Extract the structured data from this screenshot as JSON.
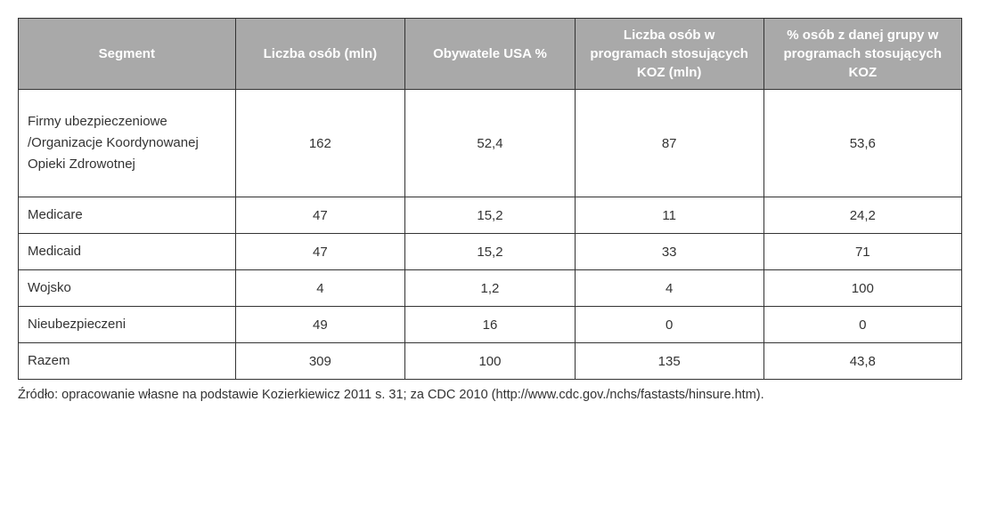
{
  "table": {
    "type": "table",
    "header_bg": "#a9a9a9",
    "header_color": "#ffffff",
    "border_color": "#333333",
    "text_color": "#333333",
    "font_family": "Arial, Helvetica, sans-serif",
    "header_fontsize": 15,
    "body_fontsize": 15,
    "columns": [
      "Segment",
      "Liczba osób (mln)",
      "Obywatele USA %",
      "Liczba osób w programach stosujących KOZ (mln)",
      "% osób z danej grupy w programach stosujących KOZ"
    ],
    "column_widths_pct": [
      23,
      18,
      18,
      20,
      21
    ],
    "column_align": [
      "left",
      "center",
      "center",
      "center",
      "center"
    ],
    "rows": [
      {
        "segment": "Firmy ubezpieczeniowe /Organizacje Koordynowanej Opieki Zdrowotnej",
        "liczba_osob_mln": "162",
        "obywatele_usa_pct": "52,4",
        "liczba_osob_koz_mln": "87",
        "pct_grupy_koz": "53,6",
        "tall": true
      },
      {
        "segment": "Medicare",
        "liczba_osob_mln": "47",
        "obywatele_usa_pct": "15,2",
        "liczba_osob_koz_mln": "11",
        "pct_grupy_koz": "24,2"
      },
      {
        "segment": "Medicaid",
        "liczba_osob_mln": "47",
        "obywatele_usa_pct": "15,2",
        "liczba_osob_koz_mln": "33",
        "pct_grupy_koz": "71"
      },
      {
        "segment": "Wojsko",
        "liczba_osob_mln": "4",
        "obywatele_usa_pct": "1,2",
        "liczba_osob_koz_mln": "4",
        "pct_grupy_koz": "100"
      },
      {
        "segment": "Nieubezpieczeni",
        "liczba_osob_mln": "49",
        "obywatele_usa_pct": "16",
        "liczba_osob_koz_mln": "0",
        "pct_grupy_koz": "0"
      },
      {
        "segment": "Razem",
        "liczba_osob_mln": "309",
        "obywatele_usa_pct": "100",
        "liczba_osob_koz_mln": "135",
        "pct_grupy_koz": "43,8"
      }
    ]
  },
  "source_text": "Źródło: opracowanie własne na podstawie Kozierkiewicz 2011 s. 31; za CDC 2010 (http://www.cdc.gov./nchs/fastasts/hinsure.htm)."
}
